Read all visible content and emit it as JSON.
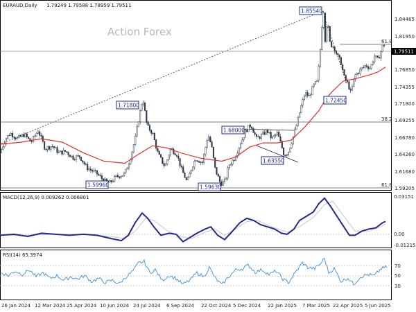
{
  "chart_data": [
    {
      "type": "candlestick",
      "title": "EURAUD,Daily",
      "ohlc_header": "1.79249 1.79588 1.78959 1.79511",
      "watermark": "Action Forex",
      "price_axis": [
        "1.84465",
        "1.81950",
        "1.79511",
        "1.76850",
        "1.74355",
        "1.71800",
        "1.69255",
        "1.66780",
        "1.64260",
        "1.61680",
        "1.59205"
      ],
      "x_ticks": [
        "26 Jan 2024",
        "12 Mar 2024",
        "25 Apr 2024",
        "10 Jun 2024",
        "24 Jul 2024",
        "6 Sep 2024",
        "22 Oct 2024",
        "5 Dec 2024",
        "22 Jan 2025",
        "7 Mar 2025",
        "22 Apr 2025",
        "5 Jun 2025"
      ],
      "ylim": [
        1.589,
        1.8555
      ],
      "current_price": 1.79511,
      "price_path": [
        [
          0,
          1.64
        ],
        [
          8,
          1.66
        ],
        [
          15,
          1.668
        ],
        [
          25,
          1.66
        ],
        [
          35,
          1.666
        ],
        [
          45,
          1.655
        ],
        [
          55,
          1.672
        ],
        [
          65,
          1.646
        ],
        [
          75,
          1.65
        ],
        [
          85,
          1.64
        ],
        [
          95,
          1.642
        ],
        [
          105,
          1.633
        ],
        [
          115,
          1.635
        ],
        [
          125,
          1.619
        ],
        [
          140,
          1.61
        ],
        [
          150,
          1.6
        ],
        [
          158,
          1.597
        ],
        [
          168,
          1.606
        ],
        [
          180,
          1.61
        ],
        [
          188,
          1.632
        ],
        [
          195,
          1.66
        ],
        [
          200,
          1.688
        ],
        [
          206,
          1.718
        ],
        [
          212,
          1.678
        ],
        [
          220,
          1.668
        ],
        [
          228,
          1.638
        ],
        [
          238,
          1.62
        ],
        [
          246,
          1.646
        ],
        [
          255,
          1.638
        ],
        [
          262,
          1.616
        ],
        [
          270,
          1.598
        ],
        [
          276,
          1.618
        ],
        [
          282,
          1.632
        ],
        [
          292,
          1.626
        ],
        [
          300,
          1.666
        ],
        [
          305,
          1.65
        ],
        [
          310,
          1.618
        ],
        [
          318,
          1.596
        ],
        [
          325,
          1.6
        ],
        [
          330,
          1.622
        ],
        [
          338,
          1.632
        ],
        [
          346,
          1.652
        ],
        [
          355,
          1.672
        ],
        [
          362,
          1.68
        ],
        [
          370,
          1.66
        ],
        [
          378,
          1.665
        ],
        [
          385,
          1.672
        ],
        [
          392,
          1.66
        ],
        [
          400,
          1.668
        ],
        [
          406,
          1.65
        ],
        [
          410,
          1.636
        ],
        [
          416,
          1.642
        ],
        [
          422,
          1.66
        ],
        [
          428,
          1.68
        ],
        [
          434,
          1.705
        ],
        [
          440,
          1.725
        ],
        [
          446,
          1.72
        ],
        [
          452,
          1.735
        ],
        [
          458,
          1.742
        ],
        [
          463,
          1.798
        ],
        [
          466,
          1.852
        ],
        [
          469,
          1.8
        ],
        [
          472,
          1.83
        ],
        [
          476,
          1.795
        ],
        [
          482,
          1.79
        ],
        [
          488,
          1.775
        ],
        [
          492,
          1.768
        ],
        [
          497,
          1.745
        ],
        [
          502,
          1.738
        ],
        [
          506,
          1.725
        ],
        [
          512,
          1.75
        ],
        [
          520,
          1.758
        ],
        [
          528,
          1.765
        ],
        [
          534,
          1.76
        ],
        [
          540,
          1.778
        ],
        [
          545,
          1.772
        ],
        [
          552,
          1.792
        ],
        [
          556,
          1.795
        ]
      ],
      "ma_path": [
        [
          0,
          1.652
        ],
        [
          30,
          1.655
        ],
        [
          60,
          1.66
        ],
        [
          90,
          1.655
        ],
        [
          120,
          1.64
        ],
        [
          150,
          1.628
        ],
        [
          180,
          1.625
        ],
        [
          200,
          1.638
        ],
        [
          220,
          1.65
        ],
        [
          240,
          1.647
        ],
        [
          260,
          1.64
        ],
        [
          290,
          1.632
        ],
        [
          320,
          1.628
        ],
        [
          340,
          1.634
        ],
        [
          360,
          1.648
        ],
        [
          380,
          1.654
        ],
        [
          400,
          1.654
        ],
        [
          420,
          1.658
        ],
        [
          440,
          1.677
        ],
        [
          460,
          1.7
        ],
        [
          470,
          1.717
        ],
        [
          480,
          1.728
        ],
        [
          495,
          1.742
        ],
        [
          510,
          1.745
        ],
        [
          530,
          1.75
        ],
        [
          545,
          1.755
        ],
        [
          556,
          1.762
        ]
      ],
      "horizontal_levels": [
        {
          "value": 1.79511,
          "label": ""
        },
        {
          "value": 1.8125,
          "label": "61.8"
        },
        {
          "value": 1.6935,
          "label": "38.2"
        }
      ],
      "annotations": [
        "1.85540",
        "1.71800",
        "1.72450",
        "1.68000",
        "1.63550",
        "1.59960",
        "1.59630"
      ],
      "fib_bottom_label": "61.8"
    },
    {
      "type": "line",
      "title": "MACD(12,26,9) 0.009262 0.006801",
      "axis_labels": [
        "0.03151",
        "0.00",
        "-0.012158"
      ],
      "ylim": [
        -0.0135,
        0.0335
      ],
      "macd": [
        [
          0,
          -0.004
        ],
        [
          20,
          -0.003
        ],
        [
          40,
          -0.005
        ],
        [
          60,
          -0.002
        ],
        [
          80,
          -0.003
        ],
        [
          100,
          -0.004
        ],
        [
          120,
          -0.003
        ],
        [
          140,
          -0.004
        ],
        [
          160,
          -0.007
        ],
        [
          175,
          -0.009
        ],
        [
          185,
          -0.004
        ],
        [
          195,
          0.008
        ],
        [
          205,
          0.017
        ],
        [
          213,
          0.012
        ],
        [
          222,
          0.004
        ],
        [
          232,
          -0.004
        ],
        [
          244,
          -0.002
        ],
        [
          254,
          -0.003
        ],
        [
          264,
          -0.01
        ],
        [
          274,
          -0.006
        ],
        [
          284,
          -0.002
        ],
        [
          296,
          0.002
        ],
        [
          304,
          0.004
        ],
        [
          314,
          -0.004
        ],
        [
          324,
          -0.008
        ],
        [
          334,
          -0.001
        ],
        [
          346,
          0.008
        ],
        [
          356,
          0.012
        ],
        [
          366,
          0.01
        ],
        [
          376,
          0.006
        ],
        [
          386,
          0.004
        ],
        [
          396,
          0.002
        ],
        [
          406,
          -0.002
        ],
        [
          414,
          -0.003
        ],
        [
          424,
          0.002
        ],
        [
          432,
          0.01
        ],
        [
          442,
          0.014
        ],
        [
          452,
          0.018
        ],
        [
          460,
          0.026
        ],
        [
          468,
          0.031
        ],
        [
          476,
          0.024
        ],
        [
          486,
          0.014
        ],
        [
          496,
          0.004
        ],
        [
          504,
          -0.004
        ],
        [
          512,
          -0.004
        ],
        [
          522,
          0.0
        ],
        [
          532,
          0.002
        ],
        [
          542,
          0.003
        ],
        [
          552,
          0.008
        ],
        [
          556,
          0.009
        ]
      ],
      "signal": [
        [
          0,
          -0.004
        ],
        [
          40,
          -0.004
        ],
        [
          80,
          -0.003
        ],
        [
          120,
          -0.003
        ],
        [
          160,
          -0.005
        ],
        [
          180,
          -0.007
        ],
        [
          195,
          0.0
        ],
        [
          210,
          0.012
        ],
        [
          222,
          0.01
        ],
        [
          240,
          0.001
        ],
        [
          260,
          -0.005
        ],
        [
          276,
          -0.007
        ],
        [
          296,
          -0.001
        ],
        [
          310,
          0.002
        ],
        [
          324,
          -0.004
        ],
        [
          340,
          0.002
        ],
        [
          356,
          0.009
        ],
        [
          372,
          0.01
        ],
        [
          392,
          0.004
        ],
        [
          414,
          -0.001
        ],
        [
          432,
          0.004
        ],
        [
          452,
          0.013
        ],
        [
          468,
          0.025
        ],
        [
          480,
          0.028
        ],
        [
          496,
          0.014
        ],
        [
          512,
          0.0
        ],
        [
          532,
          0.0
        ],
        [
          552,
          0.005
        ],
        [
          556,
          0.0068
        ]
      ]
    },
    {
      "type": "line",
      "title": "RSI(14) 65.3974",
      "axis_labels": [
        "70",
        "50",
        "30"
      ],
      "ylim": [
        10,
        90
      ],
      "rsi": [
        [
          0,
          55
        ],
        [
          10,
          50
        ],
        [
          20,
          58
        ],
        [
          30,
          52
        ],
        [
          40,
          60
        ],
        [
          50,
          48
        ],
        [
          60,
          55
        ],
        [
          70,
          45
        ],
        [
          80,
          50
        ],
        [
          90,
          42
        ],
        [
          100,
          48
        ],
        [
          110,
          44
        ],
        [
          120,
          50
        ],
        [
          130,
          40
        ],
        [
          140,
          45
        ],
        [
          150,
          38
        ],
        [
          160,
          42
        ],
        [
          170,
          36
        ],
        [
          180,
          48
        ],
        [
          190,
          58
        ],
        [
          198,
          72
        ],
        [
          206,
          74
        ],
        [
          214,
          55
        ],
        [
          222,
          60
        ],
        [
          232,
          42
        ],
        [
          242,
          50
        ],
        [
          252,
          45
        ],
        [
          262,
          35
        ],
        [
          272,
          42
        ],
        [
          282,
          55
        ],
        [
          292,
          48
        ],
        [
          300,
          64
        ],
        [
          308,
          46
        ],
        [
          318,
          34
        ],
        [
          328,
          48
        ],
        [
          338,
          60
        ],
        [
          348,
          62
        ],
        [
          356,
          68
        ],
        [
          366,
          56
        ],
        [
          376,
          60
        ],
        [
          386,
          52
        ],
        [
          396,
          58
        ],
        [
          406,
          44
        ],
        [
          414,
          38
        ],
        [
          424,
          55
        ],
        [
          434,
          72
        ],
        [
          442,
          64
        ],
        [
          452,
          62
        ],
        [
          460,
          70
        ],
        [
          466,
          80
        ],
        [
          472,
          55
        ],
        [
          480,
          62
        ],
        [
          490,
          40
        ],
        [
          500,
          46
        ],
        [
          508,
          35
        ],
        [
          518,
          48
        ],
        [
          528,
          52
        ],
        [
          538,
          50
        ],
        [
          548,
          62
        ],
        [
          556,
          65
        ]
      ]
    }
  ]
}
